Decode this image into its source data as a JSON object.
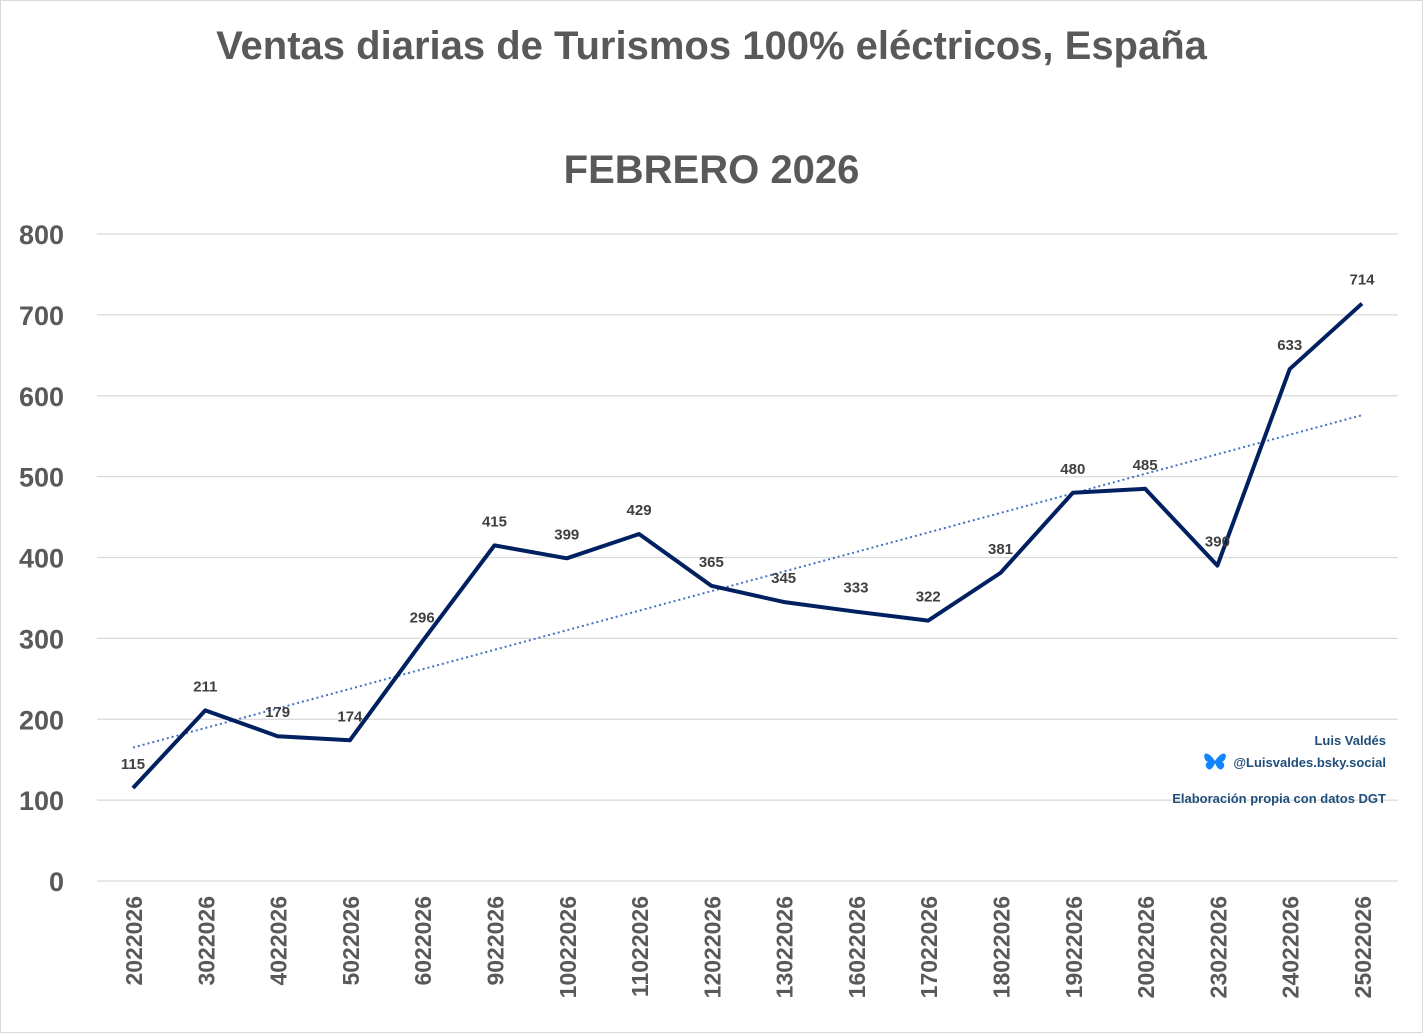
{
  "chart_data": {
    "type": "line",
    "title": "Ventas diarias de Turismos 100% eléctricos, España",
    "subtitle": "FEBRERO 2026",
    "xlabel": "",
    "ylabel": "",
    "ylim": [
      0,
      800
    ],
    "yticks": [
      "0",
      "100",
      "200",
      "300",
      "400",
      "500",
      "600",
      "700",
      "800"
    ],
    "grid": true,
    "categories": [
      "2022026",
      "3022026",
      "4022026",
      "5022026",
      "6022026",
      "9022026",
      "10022026",
      "11022026",
      "12022026",
      "13022026",
      "16022026",
      "17022026",
      "18022026",
      "19022026",
      "20022026",
      "23022026",
      "24022026",
      "25022026"
    ],
    "series": [
      {
        "name": "Ventas diarias",
        "values": [
          115,
          211,
          179,
          174,
          296,
          415,
          399,
          429,
          365,
          345,
          333,
          322,
          381,
          480,
          485,
          390,
          633,
          714
        ],
        "color": "#002060"
      }
    ],
    "trendline": {
      "type": "linear",
      "start": 165,
      "end": 576,
      "color": "#4472C4"
    }
  },
  "credits": {
    "author": "Luis Valdés",
    "handle": "@Luisvaldes.bsky.social",
    "source": "Elaboración propia con datos DGT",
    "icon": "butterfly-icon"
  }
}
